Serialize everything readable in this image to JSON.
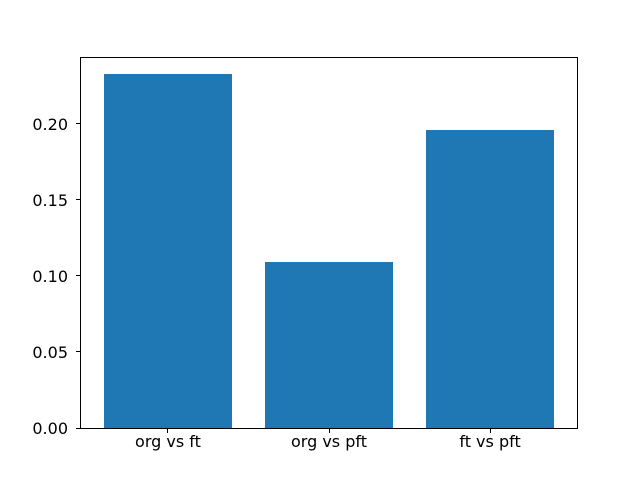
{
  "chart_data": {
    "type": "bar",
    "title": "",
    "xlabel": "",
    "ylabel": "",
    "categories": [
      "org vs ft",
      "org vs pft",
      "ft vs pft"
    ],
    "values": [
      0.233,
      0.109,
      0.196
    ],
    "yticks": [
      0.0,
      0.05,
      0.1,
      0.15,
      0.2
    ],
    "ytick_labels": [
      "0.00",
      "0.05",
      "0.10",
      "0.15",
      "0.20"
    ],
    "ylim": [
      0,
      0.2434
    ],
    "grid": false,
    "legend": null,
    "bar_color": "#1f77b4",
    "background_color": "#ffffff",
    "axis_color": "#000000"
  }
}
